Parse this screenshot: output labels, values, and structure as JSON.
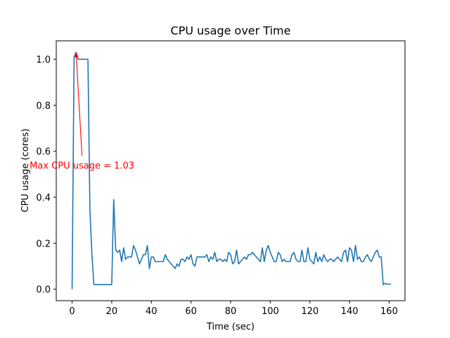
{
  "chart_data": {
    "type": "line",
    "title": "CPU usage over Time",
    "xlabel": "Time (sec)",
    "ylabel": "CPU usage (cores)",
    "xlim": [
      -8,
      168
    ],
    "ylim": [
      -0.05,
      1.08
    ],
    "xticks": [
      0,
      20,
      40,
      60,
      80,
      100,
      120,
      140,
      160
    ],
    "yticks": [
      0.0,
      0.2,
      0.4,
      0.6,
      0.8,
      1.0
    ],
    "xtick_labels": [
      "0",
      "20",
      "40",
      "60",
      "80",
      "100",
      "120",
      "140",
      "160"
    ],
    "ytick_labels": [
      "0.0",
      "0.2",
      "0.4",
      "0.6",
      "0.8",
      "1.0"
    ],
    "grid": false,
    "series": [
      {
        "color": "#1f77b4",
        "x": [
          0,
          1,
          2,
          3,
          4,
          5,
          6,
          7,
          8,
          9,
          10,
          11,
          12,
          13,
          14,
          15,
          16,
          17,
          18,
          19,
          20,
          21,
          22,
          23,
          24,
          25,
          26,
          27,
          28,
          29,
          30,
          31,
          32,
          33,
          34,
          35,
          36,
          37,
          38,
          39,
          40,
          41,
          42,
          43,
          44,
          45,
          46,
          47,
          48,
          49,
          50,
          51,
          52,
          53,
          54,
          55,
          56,
          57,
          58,
          59,
          60,
          61,
          62,
          63,
          64,
          65,
          66,
          67,
          68,
          69,
          70,
          71,
          72,
          73,
          74,
          75,
          76,
          77,
          78,
          79,
          80,
          81,
          82,
          83,
          84,
          85,
          86,
          87,
          88,
          89,
          90,
          91,
          92,
          93,
          94,
          95,
          96,
          97,
          98,
          99,
          100,
          101,
          102,
          103,
          104,
          105,
          106,
          107,
          108,
          109,
          110,
          111,
          112,
          113,
          114,
          115,
          116,
          117,
          118,
          119,
          120,
          121,
          122,
          123,
          124,
          125,
          126,
          127,
          128,
          129,
          130,
          131,
          132,
          133,
          134,
          135,
          136,
          137,
          138,
          139,
          140,
          141,
          142,
          143,
          144,
          145,
          146,
          147,
          148,
          149,
          150,
          151,
          152,
          153,
          154,
          155,
          156,
          157,
          158,
          159,
          160,
          161
        ],
        "y": [
          0.0,
          1.01,
          1.03,
          1.0,
          1.0,
          1.0,
          1.0,
          1.0,
          1.0,
          0.34,
          0.15,
          0.02,
          0.02,
          0.02,
          0.02,
          0.02,
          0.02,
          0.02,
          0.02,
          0.02,
          0.02,
          0.39,
          0.17,
          0.16,
          0.17,
          0.12,
          0.18,
          0.13,
          0.14,
          0.14,
          0.14,
          0.19,
          0.17,
          0.14,
          0.11,
          0.13,
          0.15,
          0.15,
          0.19,
          0.09,
          0.14,
          0.14,
          0.12,
          0.12,
          0.12,
          0.12,
          0.12,
          0.15,
          0.13,
          0.12,
          0.11,
          0.1,
          0.09,
          0.11,
          0.1,
          0.13,
          0.13,
          0.12,
          0.14,
          0.13,
          0.15,
          0.11,
          0.1,
          0.14,
          0.14,
          0.14,
          0.14,
          0.14,
          0.15,
          0.12,
          0.14,
          0.13,
          0.16,
          0.12,
          0.13,
          0.13,
          0.12,
          0.13,
          0.12,
          0.16,
          0.15,
          0.11,
          0.12,
          0.17,
          0.11,
          0.12,
          0.13,
          0.14,
          0.13,
          0.15,
          0.15,
          0.16,
          0.15,
          0.14,
          0.13,
          0.12,
          0.18,
          0.12,
          0.17,
          0.19,
          0.16,
          0.14,
          0.12,
          0.12,
          0.16,
          0.15,
          0.12,
          0.13,
          0.12,
          0.12,
          0.12,
          0.15,
          0.16,
          0.13,
          0.12,
          0.12,
          0.17,
          0.12,
          0.12,
          0.18,
          0.13,
          0.12,
          0.11,
          0.16,
          0.12,
          0.14,
          0.12,
          0.15,
          0.13,
          0.12,
          0.13,
          0.13,
          0.12,
          0.13,
          0.14,
          0.13,
          0.12,
          0.16,
          0.17,
          0.12,
          0.18,
          0.17,
          0.12,
          0.19,
          0.13,
          0.14,
          0.12,
          0.12,
          0.14,
          0.15,
          0.13,
          0.12,
          0.14,
          0.16,
          0.17,
          0.14,
          0.14,
          0.02,
          0.025,
          0.022,
          0.022,
          0.022
        ]
      }
    ],
    "annotation": {
      "text": "Max CPU usage = 1.03",
      "color": "#ff0000",
      "point": [
        2,
        1.03
      ],
      "text_pos": [
        5,
        0.58
      ]
    }
  }
}
